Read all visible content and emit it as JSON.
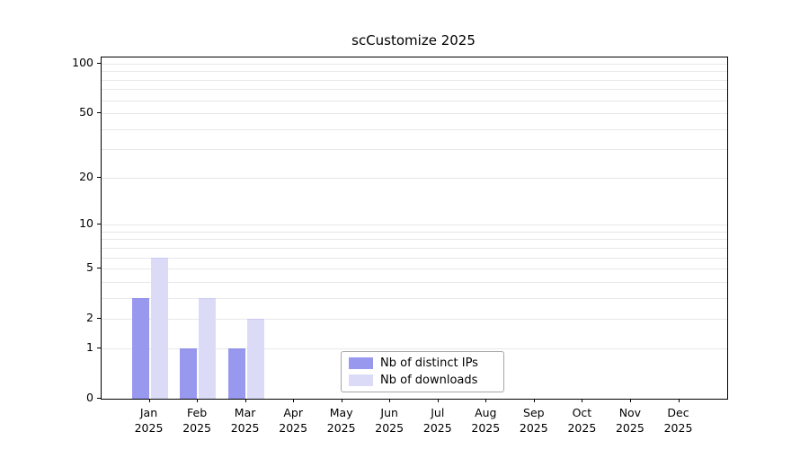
{
  "chart_data": {
    "type": "bar",
    "title": "scCustomize 2025",
    "months": [
      "Jan",
      "Feb",
      "Mar",
      "Apr",
      "May",
      "Jun",
      "Jul",
      "Aug",
      "Sep",
      "Oct",
      "Nov",
      "Dec"
    ],
    "year_label": "2025",
    "categories": [
      "Jan 2025",
      "Feb 2025",
      "Mar 2025",
      "Apr 2025",
      "May 2025",
      "Jun 2025",
      "Jul 2025",
      "Aug 2025",
      "Sep 2025",
      "Oct 2025",
      "Nov 2025",
      "Dec 2025"
    ],
    "series": [
      {
        "name": "Nb of distinct IPs",
        "color": "#9898ee",
        "edge_color": "#8a8ae4",
        "values": [
          3,
          1,
          1,
          0,
          0,
          0,
          0,
          0,
          0,
          0,
          0,
          0
        ]
      },
      {
        "name": "Nb of downloads",
        "color": "#dbdbf8",
        "edge_color": "#c9c9f0",
        "values": [
          6,
          3,
          2,
          0,
          0,
          0,
          0,
          0,
          0,
          0,
          0,
          0
        ]
      }
    ],
    "yticks": [
      0,
      1,
      2,
      5,
      10,
      20,
      50,
      100
    ],
    "minor_gridlines": [
      1,
      2,
      3,
      4,
      5,
      6,
      7,
      8,
      9,
      10,
      20,
      30,
      40,
      50,
      60,
      70,
      80,
      90,
      100
    ],
    "scale": "log1p",
    "ylim": [
      0,
      109
    ],
    "xlabel": "",
    "ylabel": "",
    "grid": true,
    "legend_position": "inside-bottom-center",
    "gridline_color": "#e8e8e8"
  }
}
